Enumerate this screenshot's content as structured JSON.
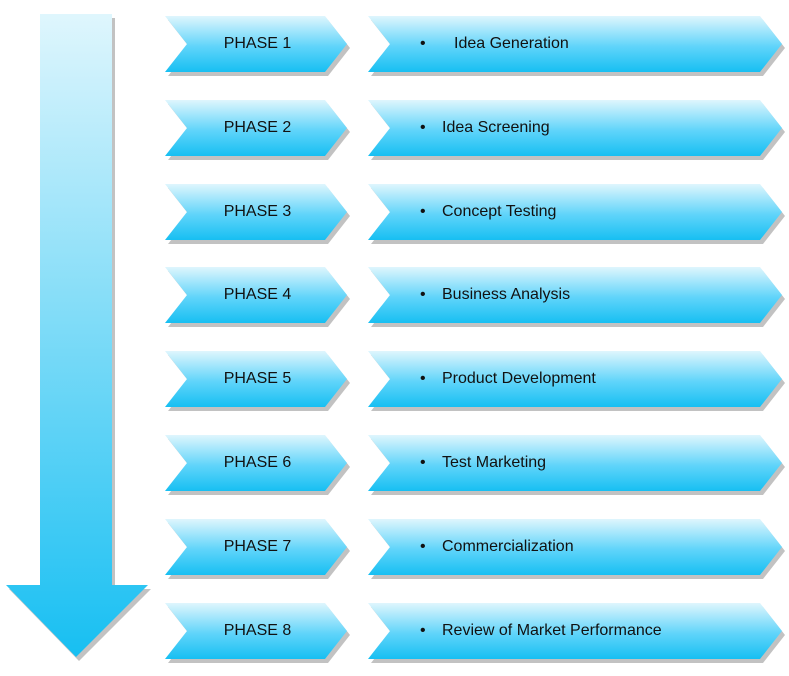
{
  "colors": {
    "light": "#dff6fd",
    "mid": "#5fd4fa",
    "dark": "#17bff2",
    "shadow": "#8f8f8f"
  },
  "flow_arrow": {
    "name": "down-arrow",
    "direction": "down"
  },
  "phases": [
    {
      "label": "PHASE 1",
      "step": "Idea Generation",
      "bullet": "•"
    },
    {
      "label": "PHASE 2",
      "step": "Idea Screening",
      "bullet": "•"
    },
    {
      "label": "PHASE 3",
      "step": "Concept Testing",
      "bullet": "•"
    },
    {
      "label": "PHASE 4",
      "step": "Business Analysis",
      "bullet": "•"
    },
    {
      "label": "PHASE 5",
      "step": "Product Development",
      "bullet": "•"
    },
    {
      "label": "PHASE 6",
      "step": "Test Marketing",
      "bullet": "•"
    },
    {
      "label": "PHASE 7",
      "step": "Commercialization",
      "bullet": "•"
    },
    {
      "label": "PHASE 8",
      "step": "Review of Market Performance",
      "bullet": "•"
    }
  ]
}
